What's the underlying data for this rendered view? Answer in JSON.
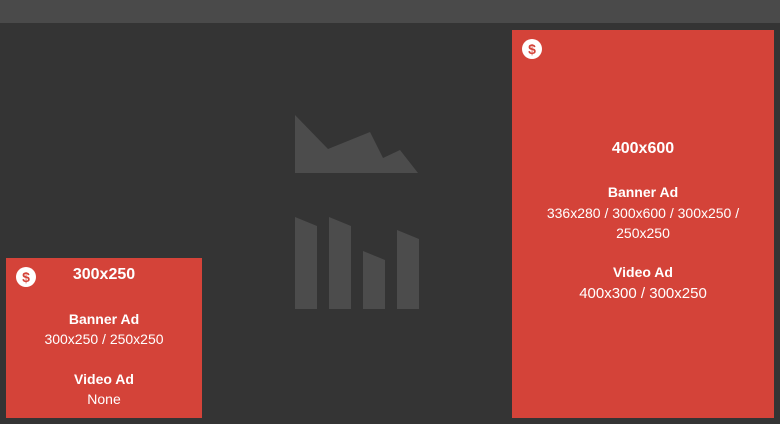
{
  "small_ad": {
    "currency_icon": "dollar-coin-icon",
    "size": "300x250",
    "banner_label": "Banner Ad",
    "banner_sizes": "300x250 / 250x250",
    "video_label": "Video Ad",
    "video_sizes": "None"
  },
  "large_ad": {
    "currency_icon": "dollar-coin-icon",
    "size": "400x600",
    "banner_label": "Banner Ad",
    "banner_sizes": "336x280 / 300x600 / 300x250 / 250x250",
    "video_label": "Video Ad",
    "video_sizes": "400x300 / 300x250"
  },
  "colors": {
    "background": "#343434",
    "top_bar": "#4a4a4a",
    "ad_slot": "#d44339",
    "placeholder": "#4c4c4c"
  },
  "placeholder_icons": [
    "area-chart-icon",
    "bar-chart-icon"
  ]
}
